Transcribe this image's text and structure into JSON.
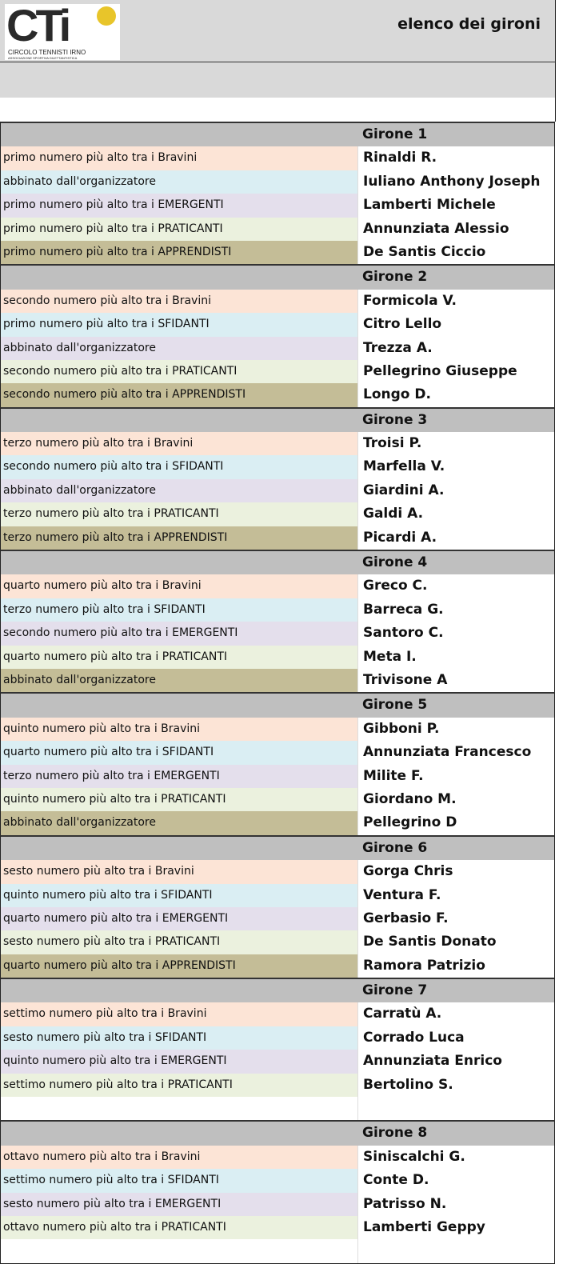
{
  "header": {
    "logo_text": "CTi",
    "logo_subtitle": "CIRCOLO TENNISTI IRNO",
    "logo_tagline": "ASSOCIAZIONE SPORTIVA DILETTANTISTICA",
    "title": "elenco dei gironi"
  },
  "colors": {
    "Bravini": "#fce4d6",
    "SFIDANTI": "#daeef3",
    "EMERGENTI": "#e4dfec",
    "PRATICANTI": "#ebf1de",
    "APPRENDISTI": "#c4bd97",
    "header": "#bfbfbf",
    "empty": "#ffffff"
  },
  "groups": [
    {
      "title": "Girone 1",
      "rows": [
        {
          "label": "primo numero più alto tra i Bravini",
          "name": "Rinaldi R.",
          "color": "Bravini"
        },
        {
          "label": "abbinato dall'organizzatore",
          "name": "Iuliano Anthony Joseph",
          "color": "SFIDANTI"
        },
        {
          "label": "primo numero più alto tra i EMERGENTI",
          "name": "Lamberti Michele",
          "color": "EMERGENTI"
        },
        {
          "label": "primo numero più alto tra i PRATICANTI",
          "name": "Annunziata Alessio",
          "color": "PRATICANTI"
        },
        {
          "label": "primo numero più alto tra i APPRENDISTI",
          "name": "De Santis Ciccio",
          "color": "APPRENDISTI"
        }
      ]
    },
    {
      "title": "Girone 2",
      "rows": [
        {
          "label": "secondo numero più alto tra i Bravini",
          "name": "Formicola V.",
          "color": "Bravini"
        },
        {
          "label": "primo numero più alto tra i SFIDANTI",
          "name": "Citro Lello",
          "color": "SFIDANTI"
        },
        {
          "label": "abbinato dall'organizzatore",
          "name": "Trezza A.",
          "color": "EMERGENTI"
        },
        {
          "label": "secondo numero più alto tra i PRATICANTI",
          "name": "Pellegrino Giuseppe",
          "color": "PRATICANTI"
        },
        {
          "label": "secondo numero più alto tra i APPRENDISTI",
          "name": "Longo D.",
          "color": "APPRENDISTI"
        }
      ]
    },
    {
      "title": "Girone 3",
      "rows": [
        {
          "label": "terzo numero più alto tra i Bravini",
          "name": "Troisi P.",
          "color": "Bravini"
        },
        {
          "label": "secondo numero più alto tra i SFIDANTI",
          "name": "Marfella V.",
          "color": "SFIDANTI"
        },
        {
          "label": "abbinato dall'organizzatore",
          "name": "Giardini A.",
          "color": "EMERGENTI"
        },
        {
          "label": "terzo numero più alto tra i PRATICANTI",
          "name": "Galdi A.",
          "color": "PRATICANTI"
        },
        {
          "label": "terzo numero più alto tra i APPRENDISTI",
          "name": "Picardi A.",
          "color": "APPRENDISTI"
        }
      ]
    },
    {
      "title": "Girone 4",
      "rows": [
        {
          "label": "quarto numero più alto tra i Bravini",
          "name": "Greco C.",
          "color": "Bravini"
        },
        {
          "label": "terzo numero più alto tra i SFIDANTI",
          "name": "Barreca G.",
          "color": "SFIDANTI"
        },
        {
          "label": "secondo numero più alto tra i EMERGENTI",
          "name": "Santoro C.",
          "color": "EMERGENTI"
        },
        {
          "label": "quarto numero più alto tra i PRATICANTI",
          "name": "Meta I.",
          "color": "PRATICANTI"
        },
        {
          "label": "abbinato dall'organizzatore",
          "name": "Trivisone A",
          "color": "APPRENDISTI"
        }
      ]
    },
    {
      "title": "Girone 5",
      "rows": [
        {
          "label": "quinto numero più alto tra i Bravini",
          "name": "Gibboni P.",
          "color": "Bravini"
        },
        {
          "label": "quarto numero più alto tra i SFIDANTI",
          "name": "Annunziata Francesco",
          "color": "SFIDANTI"
        },
        {
          "label": "terzo numero più alto tra i EMERGENTI",
          "name": "Milite F.",
          "color": "EMERGENTI"
        },
        {
          "label": "quinto numero più alto tra i PRATICANTI",
          "name": "Giordano M.",
          "color": "PRATICANTI"
        },
        {
          "label": "abbinato dall'organizzatore",
          "name": "Pellegrino D",
          "color": "APPRENDISTI"
        }
      ]
    },
    {
      "title": "Girone 6",
      "rows": [
        {
          "label": "sesto numero più alto tra i Bravini",
          "name": "Gorga Chris",
          "color": "Bravini"
        },
        {
          "label": "quinto numero più alto tra i SFIDANTI",
          "name": "Ventura F.",
          "color": "SFIDANTI"
        },
        {
          "label": "quarto numero più alto tra i EMERGENTI",
          "name": "Gerbasio F.",
          "color": "EMERGENTI"
        },
        {
          "label": "sesto numero più alto tra i PRATICANTI",
          "name": "De Santis Donato",
          "color": "PRATICANTI"
        },
        {
          "label": "quarto numero più alto tra i APPRENDISTI",
          "name": "Ramora Patrizio",
          "color": "APPRENDISTI"
        }
      ]
    },
    {
      "title": "Girone 7",
      "rows": [
        {
          "label": "settimo numero più alto tra i Bravini",
          "name": "Carratù A.",
          "color": "Bravini"
        },
        {
          "label": "sesto numero più alto tra i SFIDANTI",
          "name": "Corrado Luca",
          "color": "SFIDANTI"
        },
        {
          "label": "quinto numero più alto tra i EMERGENTI",
          "name": "Annunziata Enrico",
          "color": "EMERGENTI"
        },
        {
          "label": "settimo numero più alto tra i PRATICANTI",
          "name": "Bertolino S.",
          "color": "PRATICANTI"
        },
        {
          "label": "",
          "name": "",
          "color": "empty"
        }
      ]
    },
    {
      "title": "Girone 8",
      "rows": [
        {
          "label": "ottavo numero più alto tra i Bravini",
          "name": "Siniscalchi G.",
          "color": "Bravini"
        },
        {
          "label": "settimo numero più alto tra i SFIDANTI",
          "name": "Conte D.",
          "color": "SFIDANTI"
        },
        {
          "label": "sesto numero più alto tra i EMERGENTI",
          "name": "Patrisso N.",
          "color": "EMERGENTI"
        },
        {
          "label": "ottavo numero più alto tra i PRATICANTI",
          "name": "Lamberti Geppy",
          "color": "PRATICANTI"
        },
        {
          "label": "",
          "name": "",
          "color": "empty"
        }
      ]
    }
  ]
}
